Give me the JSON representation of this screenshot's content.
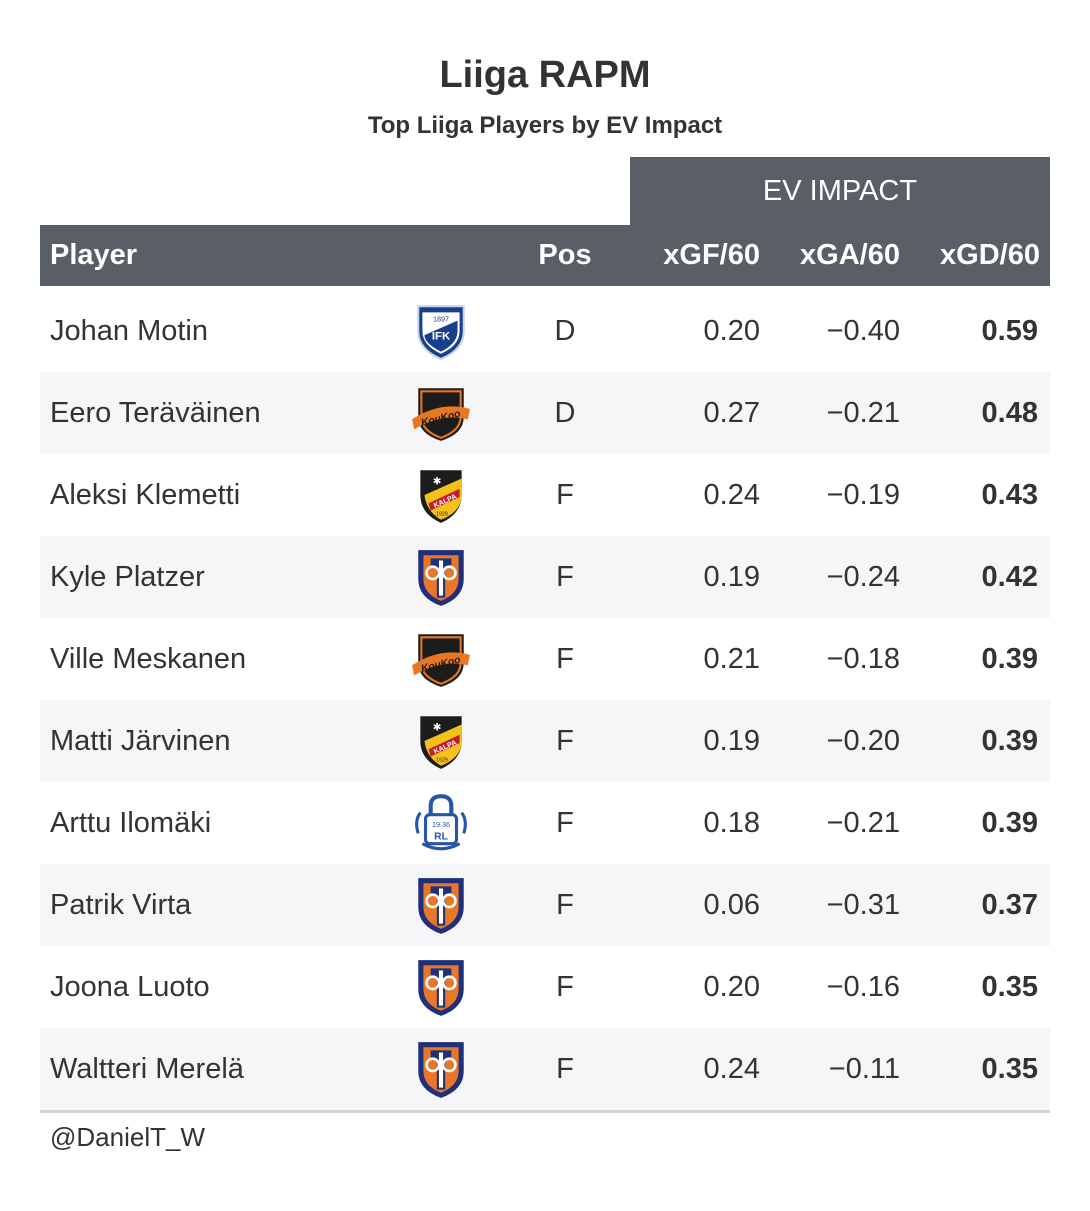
{
  "chart_data": {
    "type": "table",
    "title": "Liiga RAPM",
    "subtitle": "Top Liiga Players by EV Impact",
    "spanner": "EV IMPACT",
    "columns": {
      "player": "Player",
      "pos": "Pos",
      "xgf": "xGF/60",
      "xga": "xGA/60",
      "xgd": "xGD/60"
    },
    "rows": [
      {
        "player": "Johan Motin",
        "team_logo": "hifk-logo",
        "pos": "D",
        "xgf": "0.20",
        "xga": "−0.40",
        "xgd": "0.59"
      },
      {
        "player": "Eero Teräväinen",
        "team_logo": "koukoo-logo",
        "pos": "D",
        "xgf": "0.27",
        "xga": "−0.21",
        "xgd": "0.48"
      },
      {
        "player": "Aleksi Klemetti",
        "team_logo": "kalpa-logo",
        "pos": "F",
        "xgf": "0.24",
        "xga": "−0.19",
        "xgd": "0.43"
      },
      {
        "player": "Kyle Platzer",
        "team_logo": "tappara-logo",
        "pos": "F",
        "xgf": "0.19",
        "xga": "−0.24",
        "xgd": "0.42"
      },
      {
        "player": "Ville Meskanen",
        "team_logo": "koukoo-logo",
        "pos": "F",
        "xgf": "0.21",
        "xga": "−0.18",
        "xgd": "0.39"
      },
      {
        "player": "Matti Järvinen",
        "team_logo": "kalpa-logo",
        "pos": "F",
        "xgf": "0.19",
        "xga": "−0.20",
        "xgd": "0.39"
      },
      {
        "player": "Arttu Ilomäki",
        "team_logo": "rauman-lukko-logo",
        "pos": "F",
        "xgf": "0.18",
        "xga": "−0.21",
        "xgd": "0.39"
      },
      {
        "player": "Patrik Virta",
        "team_logo": "tappara-logo",
        "pos": "F",
        "xgf": "0.06",
        "xga": "−0.31",
        "xgd": "0.37"
      },
      {
        "player": "Joona Luoto",
        "team_logo": "tappara-logo",
        "pos": "F",
        "xgf": "0.20",
        "xga": "−0.16",
        "xgd": "0.35"
      },
      {
        "player": "Waltteri Merelä",
        "team_logo": "tappara-logo",
        "pos": "F",
        "xgf": "0.24",
        "xga": "−0.11",
        "xgd": "0.35"
      }
    ],
    "source": "@DanielT_W"
  },
  "colors": {
    "header_bg": "#5a5e66",
    "alt_row_bg": "#f6f6f8",
    "text": "#333333"
  }
}
